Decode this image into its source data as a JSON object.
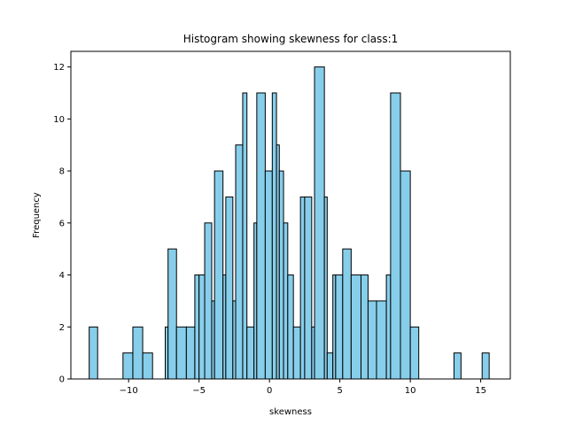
{
  "chart_data": {
    "type": "bar",
    "title": "Histogram showing skewness for class:1",
    "xlabel": "skewness",
    "ylabel": "Frequency",
    "xlim": [
      -14.1,
      17.1
    ],
    "ylim": [
      0,
      12.6
    ],
    "xticks": [
      -10,
      -5,
      0,
      5,
      10,
      15
    ],
    "yticks": [
      0,
      2,
      4,
      6,
      8,
      10,
      12
    ],
    "xtick_labels": [
      "−10",
      "−5",
      "0",
      "5",
      "10",
      "15"
    ],
    "ytick_labels": [
      "0",
      "2",
      "4",
      "6",
      "8",
      "10",
      "12"
    ],
    "bar_color": "#87CEEB",
    "edge_color": "#000000",
    "grid": false,
    "bins": [
      {
        "x0": -12.8,
        "x1": -12.2,
        "count": 2
      },
      {
        "x0": -10.4,
        "x1": -9.7,
        "count": 1
      },
      {
        "x0": -9.7,
        "x1": -9.0,
        "count": 2
      },
      {
        "x0": -9.0,
        "x1": -8.3,
        "count": 1
      },
      {
        "x0": -7.4,
        "x1": -7.2,
        "count": 2
      },
      {
        "x0": -7.2,
        "x1": -6.6,
        "count": 5
      },
      {
        "x0": -6.6,
        "x1": -5.9,
        "count": 2
      },
      {
        "x0": -5.9,
        "x1": -5.3,
        "count": 2
      },
      {
        "x0": -5.3,
        "x1": -5.0,
        "count": 4
      },
      {
        "x0": -5.0,
        "x1": -4.6,
        "count": 4
      },
      {
        "x0": -4.6,
        "x1": -4.1,
        "count": 6
      },
      {
        "x0": -4.1,
        "x1": -3.9,
        "count": 3
      },
      {
        "x0": -3.9,
        "x1": -3.3,
        "count": 8
      },
      {
        "x0": -3.3,
        "x1": -3.1,
        "count": 4
      },
      {
        "x0": -3.1,
        "x1": -2.6,
        "count": 7
      },
      {
        "x0": -2.6,
        "x1": -2.4,
        "count": 3
      },
      {
        "x0": -2.4,
        "x1": -1.9,
        "count": 9
      },
      {
        "x0": -1.9,
        "x1": -1.6,
        "count": 11
      },
      {
        "x0": -1.6,
        "x1": -1.1,
        "count": 2
      },
      {
        "x0": -1.1,
        "x1": -0.9,
        "count": 6
      },
      {
        "x0": -0.9,
        "x1": -0.3,
        "count": 11
      },
      {
        "x0": -0.3,
        "x1": 0.2,
        "count": 8
      },
      {
        "x0": 0.2,
        "x1": 0.5,
        "count": 11
      },
      {
        "x0": 0.5,
        "x1": 0.7,
        "count": 9
      },
      {
        "x0": 0.7,
        "x1": 1.0,
        "count": 8
      },
      {
        "x0": 1.0,
        "x1": 1.3,
        "count": 6
      },
      {
        "x0": 1.3,
        "x1": 1.7,
        "count": 4
      },
      {
        "x0": 1.7,
        "x1": 2.2,
        "count": 2
      },
      {
        "x0": 2.2,
        "x1": 2.5,
        "count": 7
      },
      {
        "x0": 2.5,
        "x1": 3.0,
        "count": 7
      },
      {
        "x0": 3.0,
        "x1": 3.2,
        "count": 2
      },
      {
        "x0": 3.2,
        "x1": 3.9,
        "count": 12
      },
      {
        "x0": 3.9,
        "x1": 4.1,
        "count": 7
      },
      {
        "x0": 4.1,
        "x1": 4.5,
        "count": 1
      },
      {
        "x0": 4.5,
        "x1": 4.7,
        "count": 4
      },
      {
        "x0": 4.7,
        "x1": 5.2,
        "count": 4
      },
      {
        "x0": 5.2,
        "x1": 5.8,
        "count": 5
      },
      {
        "x0": 5.8,
        "x1": 6.5,
        "count": 4
      },
      {
        "x0": 6.5,
        "x1": 7.0,
        "count": 4
      },
      {
        "x0": 7.0,
        "x1": 7.6,
        "count": 3
      },
      {
        "x0": 7.6,
        "x1": 8.3,
        "count": 3
      },
      {
        "x0": 8.3,
        "x1": 8.6,
        "count": 4
      },
      {
        "x0": 8.6,
        "x1": 9.3,
        "count": 11
      },
      {
        "x0": 9.3,
        "x1": 10.0,
        "count": 8
      },
      {
        "x0": 10.0,
        "x1": 10.6,
        "count": 2
      },
      {
        "x0": 13.1,
        "x1": 13.6,
        "count": 1
      },
      {
        "x0": 15.1,
        "x1": 15.6,
        "count": 1
      }
    ]
  }
}
